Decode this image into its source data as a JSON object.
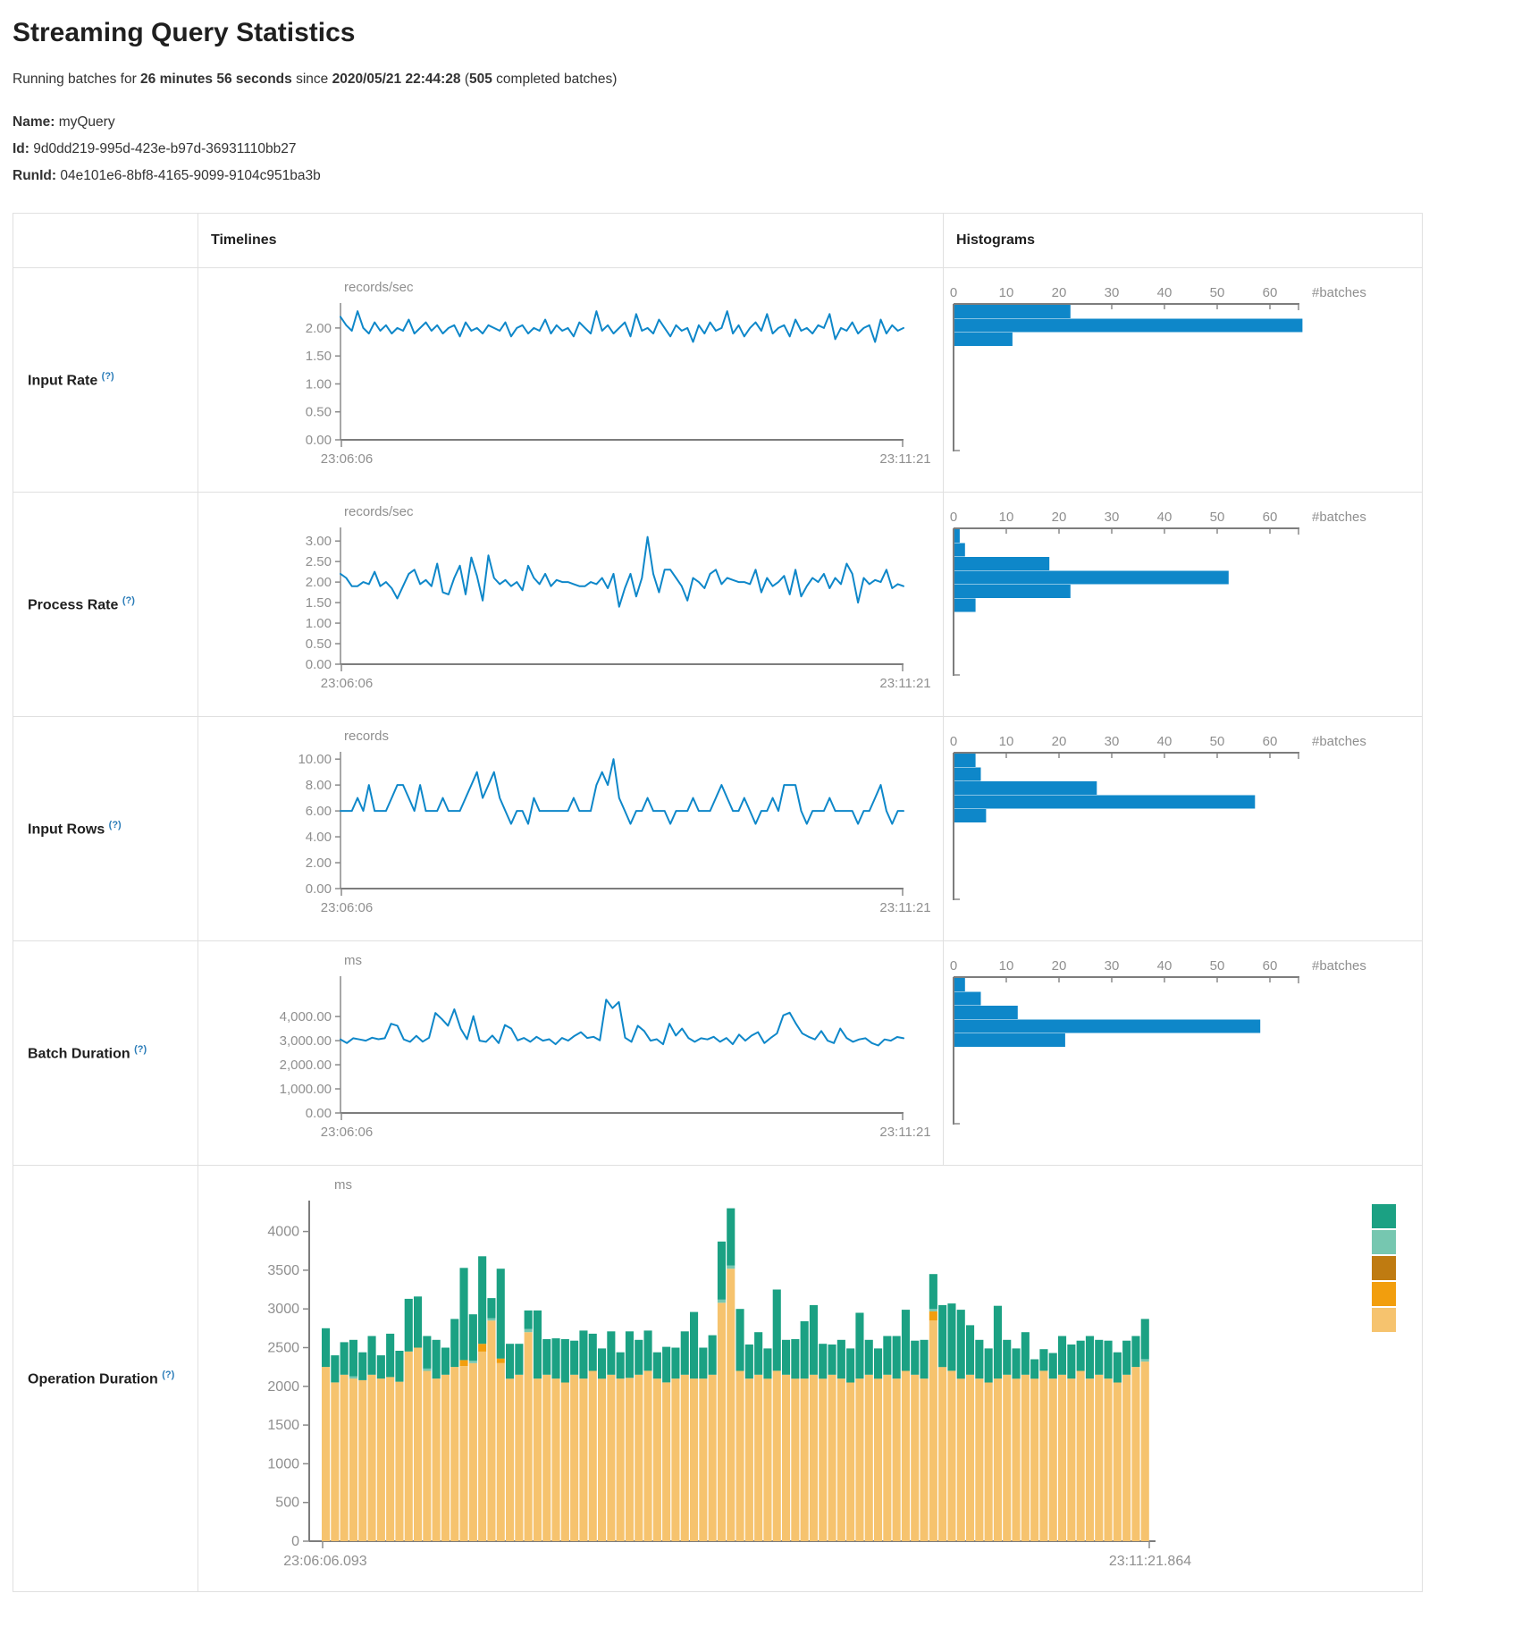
{
  "page": {
    "title": "Streaming Query Statistics",
    "summary": {
      "prefix": "Running batches for ",
      "duration": "26 minutes 56 seconds",
      "mid": " since ",
      "start_time": "2020/05/21 22:44:28",
      "paren": " (",
      "batches": "505",
      "suffix": " completed batches)"
    }
  },
  "query_info": {
    "name_label": "Name:",
    "name": " myQuery",
    "id_label": "Id:",
    "id": " 9d0dd219-995d-423e-b97d-36931110bb27",
    "runid_label": "RunId:",
    "runid": " 04e101e6-8bf8-4165-9099-9104c951ba3b"
  },
  "table": {
    "header_timelines": "Timelines",
    "header_histograms": "Histograms",
    "help": "(?)",
    "rows": [
      {
        "label": "Input Rate"
      },
      {
        "label": "Process Rate"
      },
      {
        "label": "Input Rows"
      },
      {
        "label": "Batch Duration"
      },
      {
        "label": "Operation Duration"
      }
    ]
  },
  "colors": {
    "blue": "#0e87c9",
    "axis": "#8a8a8a",
    "text_gray": "#8f8f8f",
    "help_link": "#2a7cb8",
    "stack_green": "#1ba183",
    "stack_light_teal": "#76c7b0",
    "stack_brown": "#bf7b11",
    "stack_orange": "#f29e0d",
    "stack_tan": "#f6c36e"
  },
  "chart_data": {
    "input_rate_timeline": {
      "type": "line",
      "unit": "records/sec",
      "x_start": "23:06:06",
      "x_end": "23:11:21",
      "ymax": 2.35,
      "yticks": [
        [
          "2.00",
          2.0
        ],
        [
          "1.50",
          1.5
        ],
        [
          "1.00",
          1.0
        ],
        [
          "0.50",
          0.5
        ],
        [
          "0.00",
          0.0
        ]
      ],
      "values": [
        2.2,
        2.05,
        1.95,
        2.3,
        2.0,
        1.9,
        2.1,
        1.95,
        2.05,
        1.9,
        2.0,
        1.95,
        2.15,
        1.9,
        2.0,
        2.1,
        1.95,
        2.05,
        1.9,
        2.0,
        2.05,
        1.85,
        2.1,
        1.95,
        2.0,
        1.9,
        2.05,
        2.0,
        1.95,
        2.1,
        1.85,
        2.0,
        2.05,
        1.9,
        2.0,
        1.95,
        2.15,
        1.9,
        2.05,
        1.95,
        2.0,
        1.85,
        2.1,
        2.0,
        1.9,
        2.3,
        1.95,
        2.05,
        1.9,
        2.0,
        2.1,
        1.85,
        2.25,
        1.95,
        2.0,
        1.9,
        2.15,
        2.0,
        1.85,
        2.05,
        1.95,
        2.0,
        1.75,
        2.05,
        1.9,
        2.1,
        1.95,
        2.0,
        2.3,
        1.9,
        2.05,
        1.85,
        2.0,
        2.1,
        1.95,
        2.25,
        1.9,
        2.0,
        2.05,
        1.85,
        2.15,
        1.95,
        2.0,
        1.9,
        2.05,
        2.0,
        2.25,
        1.8,
        2.0,
        1.95,
        2.1,
        1.9,
        2.0,
        2.05,
        1.75,
        2.15,
        1.9,
        2.05,
        1.95,
        2.0
      ]
    },
    "input_rate_hist": {
      "type": "histogram",
      "xticks": [
        "0",
        "10",
        "20",
        "30",
        "40",
        "50",
        "60"
      ],
      "right_label": "#batches",
      "bars": [
        22,
        66,
        11
      ]
    },
    "process_rate_timeline": {
      "type": "line",
      "unit": "records/sec",
      "x_start": "23:06:06",
      "x_end": "23:11:21",
      "ymax": 3.2,
      "yticks": [
        [
          "3.00",
          3.0
        ],
        [
          "2.50",
          2.5
        ],
        [
          "2.00",
          2.0
        ],
        [
          "1.50",
          1.5
        ],
        [
          "1.00",
          1.0
        ],
        [
          "0.50",
          0.5
        ],
        [
          "0.00",
          0.0
        ]
      ],
      "values": [
        2.2,
        2.1,
        1.9,
        1.9,
        2.0,
        1.95,
        2.25,
        1.9,
        2.0,
        1.85,
        1.6,
        1.9,
        2.2,
        2.3,
        1.95,
        2.05,
        1.9,
        2.45,
        1.75,
        1.7,
        2.1,
        2.4,
        1.7,
        2.6,
        2.15,
        1.55,
        2.65,
        2.1,
        1.95,
        2.05,
        1.9,
        2.0,
        1.8,
        2.4,
        2.1,
        1.95,
        2.2,
        1.9,
        2.05,
        2.0,
        2.0,
        1.95,
        1.9,
        1.9,
        2.0,
        1.95,
        2.1,
        1.85,
        2.2,
        1.4,
        1.85,
        2.2,
        1.65,
        2.1,
        3.1,
        2.2,
        1.75,
        2.3,
        2.3,
        2.1,
        1.9,
        1.55,
        2.1,
        2.0,
        1.85,
        2.2,
        2.3,
        1.95,
        2.1,
        2.05,
        2.0,
        2.0,
        1.95,
        2.3,
        1.75,
        2.1,
        1.9,
        2.0,
        2.15,
        1.7,
        2.3,
        1.65,
        1.9,
        2.1,
        2.0,
        2.2,
        1.85,
        2.1,
        1.95,
        2.45,
        2.2,
        1.5,
        2.1,
        1.95,
        2.05,
        2.0,
        2.3,
        1.85,
        1.95,
        1.9
      ]
    },
    "process_rate_hist": {
      "type": "histogram",
      "xticks": [
        "0",
        "10",
        "20",
        "30",
        "40",
        "50",
        "60"
      ],
      "right_label": "#batches",
      "bars": [
        1,
        2,
        18,
        52,
        22,
        4
      ]
    },
    "input_rows_timeline": {
      "type": "line",
      "unit": "records",
      "x_start": "23:06:06",
      "x_end": "23:11:21",
      "ymax": 10.15,
      "yticks": [
        [
          "10.00",
          10
        ],
        [
          "8.00",
          8
        ],
        [
          "6.00",
          6
        ],
        [
          "4.00",
          4
        ],
        [
          "2.00",
          2
        ],
        [
          "0.00",
          0
        ]
      ],
      "values": [
        6,
        6,
        6,
        7,
        6,
        8,
        6,
        6,
        6,
        7,
        8,
        8,
        7,
        6,
        8,
        6,
        6,
        6,
        7,
        6,
        6,
        6,
        7,
        8,
        9,
        7,
        8,
        9,
        7,
        6,
        5,
        6,
        6,
        5,
        7,
        6,
        6,
        6,
        6,
        6,
        6,
        7,
        6,
        6,
        6,
        8,
        9,
        8,
        10,
        7,
        6,
        5,
        6,
        6,
        7,
        6,
        6,
        6,
        5,
        6,
        6,
        6,
        7,
        6,
        6,
        6,
        7,
        8,
        7,
        6,
        6,
        7,
        6,
        5,
        6,
        6,
        7,
        6,
        8,
        8,
        8,
        6,
        5,
        6,
        6,
        6,
        7,
        6,
        6,
        6,
        6,
        5,
        6,
        6,
        7,
        8,
        6,
        5,
        6,
        6
      ]
    },
    "input_rows_hist": {
      "type": "histogram",
      "xticks": [
        "0",
        "10",
        "20",
        "30",
        "40",
        "50",
        "60"
      ],
      "right_label": "#batches",
      "bars": [
        4,
        5,
        27,
        57,
        6
      ]
    },
    "batch_duration_timeline": {
      "type": "line",
      "unit": "ms",
      "x_start": "23:06:06",
      "x_end": "23:11:21",
      "ymax": 5450,
      "yticks": [
        [
          "4,000.00",
          4000
        ],
        [
          "3,000.00",
          3000
        ],
        [
          "2,000.00",
          2000
        ],
        [
          "1,000.00",
          1000
        ],
        [
          "0.00",
          0
        ]
      ],
      "values": [
        3050,
        2900,
        3100,
        3050,
        3000,
        3120,
        3060,
        3100,
        3700,
        3620,
        3050,
        2950,
        3200,
        2960,
        3120,
        4150,
        3900,
        3620,
        4300,
        3500,
        3060,
        4020,
        3000,
        2950,
        3210,
        2900,
        3650,
        3500,
        3010,
        3110,
        2950,
        3160,
        3000,
        3060,
        2850,
        3110,
        3000,
        3200,
        3350,
        3110,
        3160,
        3010,
        4700,
        4350,
        4600,
        3120,
        2950,
        3620,
        3400,
        3000,
        3060,
        2850,
        3700,
        3210,
        3500,
        3110,
        2950,
        3100,
        3050,
        3160,
        2950,
        3110,
        2850,
        3250,
        3000,
        3210,
        3350,
        2900,
        3110,
        3300,
        4050,
        4160,
        3700,
        3300,
        3160,
        3050,
        3400,
        3000,
        2900,
        3500,
        3110,
        2950,
        3050,
        3100,
        2900,
        2800,
        3050,
        3000,
        3150,
        3100
      ]
    },
    "batch_duration_hist": {
      "type": "histogram",
      "xticks": [
        "0",
        "10",
        "20",
        "30",
        "40",
        "50",
        "60"
      ],
      "right_label": "#batches",
      "bars": [
        2,
        5,
        12,
        58,
        21
      ]
    },
    "operation_duration": {
      "type": "bar-stacked",
      "unit": "ms",
      "x_start": "23:06:06.093",
      "x_end": "23:11:21.864",
      "ymax": 4330,
      "yticks": [
        [
          "4000",
          4000
        ],
        [
          "3500",
          3500
        ],
        [
          "3000",
          3000
        ],
        [
          "2500",
          2500
        ],
        [
          "2000",
          2000
        ],
        [
          "1500",
          1500
        ],
        [
          "1000",
          1000
        ],
        [
          "500",
          500
        ],
        [
          "0",
          0
        ]
      ],
      "stack_colors": [
        "#f6c36e",
        "#f29e0d",
        "#76c7b0",
        "#1ba183"
      ],
      "legend_colors": [
        "#1ba183",
        "#76c7b0",
        "#bf7b11",
        "#f29e0d",
        "#f6c36e"
      ],
      "bars": [
        [
          2250,
          0,
          0,
          500
        ],
        [
          2050,
          0,
          0,
          350
        ],
        [
          2150,
          0,
          0,
          420
        ],
        [
          2100,
          0,
          30,
          470
        ],
        [
          2080,
          0,
          0,
          360
        ],
        [
          2150,
          0,
          0,
          500
        ],
        [
          2100,
          0,
          0,
          300
        ],
        [
          2120,
          0,
          0,
          560
        ],
        [
          2060,
          0,
          0,
          400
        ],
        [
          2450,
          0,
          0,
          680
        ],
        [
          2500,
          0,
          0,
          660
        ],
        [
          2200,
          0,
          30,
          420
        ],
        [
          2100,
          0,
          0,
          500
        ],
        [
          2150,
          0,
          0,
          350
        ],
        [
          2250,
          0,
          0,
          620
        ],
        [
          2260,
          80,
          0,
          1190
        ],
        [
          2300,
          0,
          30,
          600
        ],
        [
          2450,
          100,
          0,
          1130
        ],
        [
          2850,
          0,
          30,
          260
        ],
        [
          2300,
          60,
          0,
          1160
        ],
        [
          2100,
          0,
          0,
          450
        ],
        [
          2150,
          0,
          0,
          400
        ],
        [
          2700,
          0,
          40,
          240
        ],
        [
          2100,
          0,
          0,
          880
        ],
        [
          2150,
          0,
          0,
          460
        ],
        [
          2100,
          0,
          0,
          520
        ],
        [
          2050,
          0,
          0,
          560
        ],
        [
          2150,
          0,
          0,
          440
        ],
        [
          2100,
          0,
          0,
          620
        ],
        [
          2200,
          0,
          0,
          480
        ],
        [
          2100,
          0,
          0,
          390
        ],
        [
          2150,
          0,
          0,
          560
        ],
        [
          2100,
          0,
          0,
          340
        ],
        [
          2110,
          0,
          0,
          600
        ],
        [
          2150,
          0,
          0,
          450
        ],
        [
          2200,
          0,
          0,
          520
        ],
        [
          2100,
          0,
          0,
          340
        ],
        [
          2050,
          0,
          0,
          460
        ],
        [
          2100,
          0,
          0,
          400
        ],
        [
          2150,
          0,
          0,
          560
        ],
        [
          2100,
          0,
          0,
          860
        ],
        [
          2100,
          0,
          0,
          400
        ],
        [
          2150,
          0,
          0,
          510
        ],
        [
          3080,
          0,
          40,
          750
        ],
        [
          3520,
          0,
          40,
          740
        ],
        [
          2200,
          0,
          0,
          800
        ],
        [
          2100,
          0,
          0,
          440
        ],
        [
          2150,
          0,
          0,
          550
        ],
        [
          2100,
          0,
          0,
          390
        ],
        [
          2200,
          0,
          0,
          1050
        ],
        [
          2150,
          0,
          0,
          450
        ],
        [
          2100,
          0,
          0,
          510
        ],
        [
          2100,
          0,
          0,
          740
        ],
        [
          2150,
          0,
          0,
          900
        ],
        [
          2100,
          0,
          0,
          450
        ],
        [
          2150,
          0,
          0,
          390
        ],
        [
          2100,
          0,
          0,
          500
        ],
        [
          2050,
          0,
          0,
          440
        ],
        [
          2100,
          0,
          0,
          850
        ],
        [
          2150,
          0,
          0,
          450
        ],
        [
          2100,
          0,
          0,
          390
        ],
        [
          2150,
          0,
          0,
          500
        ],
        [
          2100,
          0,
          0,
          550
        ],
        [
          2200,
          0,
          0,
          790
        ],
        [
          2150,
          0,
          0,
          440
        ],
        [
          2100,
          0,
          0,
          500
        ],
        [
          2850,
          120,
          30,
          450
        ],
        [
          2250,
          0,
          0,
          800
        ],
        [
          2200,
          0,
          0,
          870
        ],
        [
          2100,
          0,
          0,
          890
        ],
        [
          2150,
          0,
          0,
          640
        ],
        [
          2100,
          0,
          0,
          500
        ],
        [
          2050,
          0,
          0,
          440
        ],
        [
          2100,
          0,
          0,
          940
        ],
        [
          2150,
          0,
          0,
          450
        ],
        [
          2100,
          0,
          0,
          390
        ],
        [
          2150,
          0,
          0,
          550
        ],
        [
          2100,
          0,
          0,
          250
        ],
        [
          2200,
          0,
          0,
          280
        ],
        [
          2100,
          0,
          0,
          330
        ],
        [
          2150,
          0,
          0,
          500
        ],
        [
          2100,
          0,
          0,
          440
        ],
        [
          2200,
          0,
          0,
          390
        ],
        [
          2100,
          0,
          0,
          550
        ],
        [
          2150,
          0,
          0,
          450
        ],
        [
          2100,
          0,
          0,
          490
        ],
        [
          2050,
          0,
          0,
          390
        ],
        [
          2150,
          0,
          0,
          440
        ],
        [
          2250,
          0,
          0,
          400
        ],
        [
          2320,
          0,
          30,
          520
        ]
      ]
    }
  }
}
